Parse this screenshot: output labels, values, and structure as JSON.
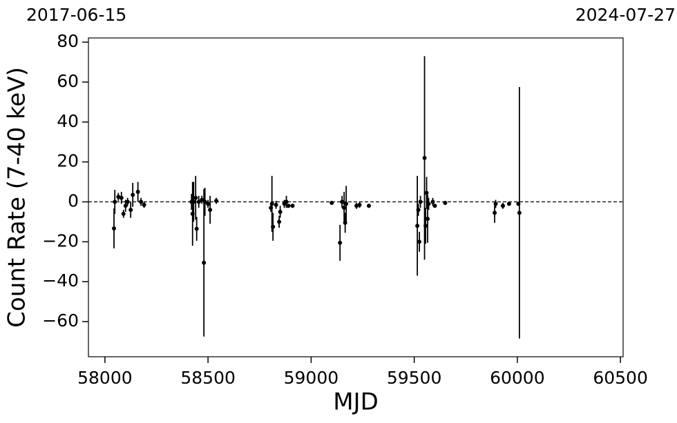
{
  "chart_data": {
    "type": "errorbar-scatter",
    "xlabel": "MJD",
    "ylabel": "Count Rate (7-40 keV)",
    "top_left_label": "2017-06-15",
    "top_right_label": "2024-07-27",
    "xlim": [
      57920,
      60513
    ],
    "ylim": [
      -77.6,
      82.1
    ],
    "xticks": [
      58000,
      58500,
      59000,
      59500,
      60000,
      60500
    ],
    "yticks": [
      {
        "value": -60,
        "label": "−60"
      },
      {
        "value": -40,
        "label": "−40"
      },
      {
        "value": -20,
        "label": "−20"
      },
      0,
      20,
      40,
      60,
      80
    ],
    "hline": 0,
    "series": [
      {
        "color": "#000000",
        "x": [
          58044,
          58048,
          58065,
          58080,
          58090,
          58100,
          58110,
          58125,
          58135,
          58160,
          58175,
          58190,
          58420,
          58425,
          58430,
          58440,
          58445,
          58455,
          58470,
          58480,
          58485,
          58500,
          58510,
          58540,
          58805,
          58810,
          58815,
          58830,
          58845,
          58850,
          58870,
          58880,
          58890,
          58910,
          59100,
          59140,
          59150,
          59160,
          59165,
          59170,
          59220,
          59235,
          59280,
          59515,
          59520,
          59525,
          59530,
          59550,
          59555,
          59560,
          59565,
          59570,
          59590,
          59600,
          59650,
          59890,
          59895,
          59930,
          59960,
          60005,
          60010
        ],
        "values": [
          -13.3,
          0,
          2.5,
          2,
          -6,
          -2,
          0,
          -4,
          3.5,
          5,
          0,
          -1.5,
          0,
          -6,
          0,
          2,
          -13.5,
          0,
          1,
          -30.5,
          0,
          -1,
          -4,
          0.5,
          -3,
          -1,
          -12.5,
          -1.5,
          -10,
          -5,
          -1,
          0,
          -2,
          -2,
          -0.5,
          -20.5,
          0,
          -3,
          -10.5,
          -1,
          -2,
          -1.5,
          -2,
          -12,
          -4,
          -20,
          0,
          22,
          -12,
          4.5,
          -8.5,
          -1,
          0,
          -2,
          -0.5,
          -5.5,
          -1,
          -2,
          -1,
          -1,
          -5.5
        ],
        "errors": [
          10,
          6,
          2,
          3,
          2,
          3,
          2,
          4,
          6,
          5,
          2,
          1.5,
          4,
          16,
          10,
          11,
          6,
          3,
          2,
          37,
          7,
          2,
          7,
          1.5,
          2,
          14,
          7,
          2,
          3,
          3,
          2,
          3,
          1,
          1,
          1,
          9,
          3,
          8,
          5,
          9,
          1.5,
          1.5,
          1,
          25,
          3,
          5,
          3,
          51,
          9,
          8,
          12,
          3,
          2,
          1,
          1,
          5,
          2,
          1.5,
          1,
          1,
          63
        ]
      }
    ]
  }
}
